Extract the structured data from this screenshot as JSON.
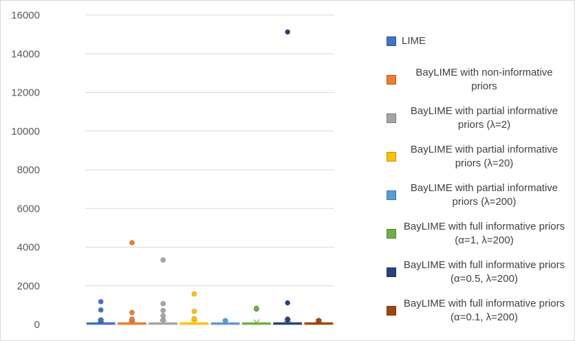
{
  "chart_data": {
    "type": "box",
    "title": "",
    "xlabel": "",
    "ylabel": "",
    "ylim": [
      0,
      16000
    ],
    "yticks": [
      "0",
      "2000",
      "4000",
      "6000",
      "8000",
      "10000",
      "12000",
      "14000",
      "16000"
    ],
    "grid": "horizontal",
    "legend_position": "right",
    "series": [
      {
        "name": "LIME",
        "color": "#4472C4",
        "median": 20,
        "q1": 5,
        "q3": 40,
        "whisker_high": 120,
        "outliers": [
          170,
          240,
          750,
          1180
        ]
      },
      {
        "name": "BayLIME with non-informative priors",
        "color": "#ED7D31",
        "median": 20,
        "q1": 5,
        "q3": 40,
        "whisker_high": 150,
        "outliers": [
          200,
          280,
          620,
          4230
        ]
      },
      {
        "name": "BayLIME with partial informative priors (λ=2)",
        "color": "#A5A5A5",
        "median": 20,
        "q1": 5,
        "q3": 50,
        "whisker_high": 180,
        "outliers": [
          230,
          450,
          720,
          1080,
          3340
        ]
      },
      {
        "name": "BayLIME with partial informative priors (λ=20)",
        "color": "#FFC000",
        "median": 20,
        "q1": 5,
        "q3": 50,
        "whisker_high": 180,
        "outliers": [
          300,
          680,
          1580
        ]
      },
      {
        "name": "BayLIME with partial informative priors (λ=200)",
        "color": "#5B9BD5",
        "median": 10,
        "q1": 3,
        "q3": 30,
        "whisker_high": 80,
        "outliers": [
          200
        ]
      },
      {
        "name": "BayLIME with full informative priors (α=1, λ=200)",
        "color": "#70AD47",
        "median": 10,
        "q1": 3,
        "q3": 30,
        "whisker_high": 60,
        "outliers": [
          800,
          840
        ]
      },
      {
        "name": "BayLIME with full informative priors (α=0.5, λ=200)",
        "color": "#264478",
        "median": 20,
        "q1": 5,
        "q3": 40,
        "whisker_high": 150,
        "outliers": [
          280,
          1120,
          15130
        ]
      },
      {
        "name": "BayLIME with full informative priors (α=0.1, λ=200)",
        "color": "#9E480E",
        "median": 20,
        "q1": 5,
        "q3": 40,
        "whisker_high": 140,
        "outliers": [
          210
        ]
      }
    ]
  }
}
